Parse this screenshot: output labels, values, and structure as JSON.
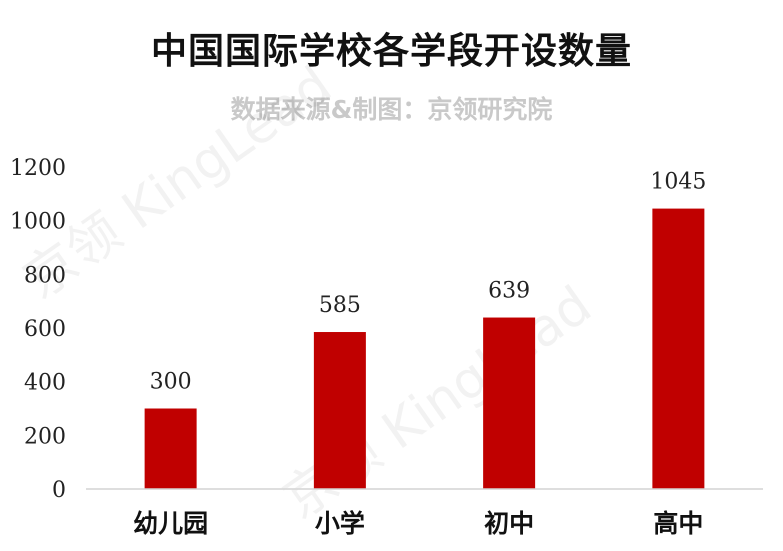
{
  "watermark": "京领 KingLead",
  "chart_data": {
    "type": "bar",
    "title": "中国国际学校各学段开设数量",
    "subtitle": "数据来源&制图：京领研究院",
    "categories": [
      "幼儿园",
      "小学",
      "初中",
      "高中"
    ],
    "values": [
      300,
      585,
      639,
      1045
    ],
    "value_labels": [
      "300",
      "585",
      "639",
      "1045"
    ],
    "ylim": [
      0,
      1200
    ],
    "yticks": [
      0,
      200,
      400,
      600,
      800,
      1000,
      1200
    ],
    "grid": false,
    "bar_color": "#c00000"
  }
}
